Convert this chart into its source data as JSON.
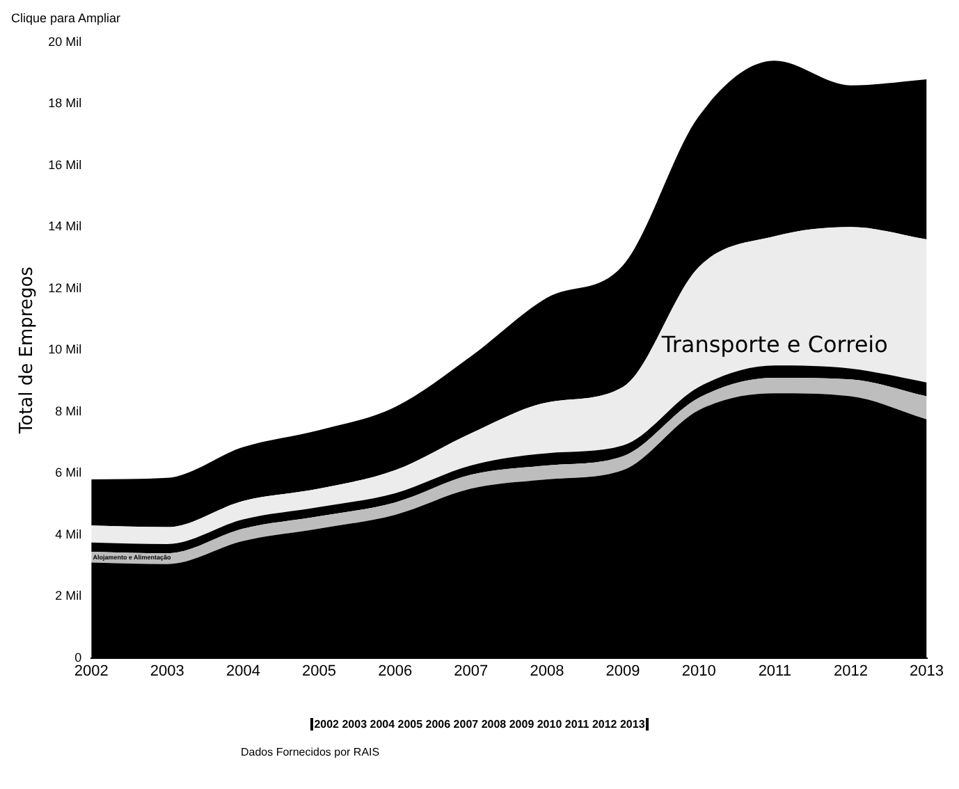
{
  "chart_data": {
    "type": "area",
    "stacked": true,
    "ylabel": "Total de Empregos",
    "annotations": [
      "Clique para Ampliar",
      "2002 2003 2004 2005 2006 2007 2008 2009 2010 2011 2012 2013",
      "Dados Fornecidos por RAIS"
    ],
    "x": [
      2002,
      2003,
      2004,
      2005,
      2006,
      2007,
      2008,
      2009,
      2010,
      2011,
      2012,
      2013
    ],
    "xlim": [
      2002,
      2013
    ],
    "xticks": [
      2002,
      2003,
      2004,
      2005,
      2006,
      2007,
      2008,
      2009,
      2010,
      2011,
      2012,
      2013
    ],
    "ylim": [
      0,
      20
    ],
    "yticks": [
      0,
      {
        "value": 2,
        "label": "2 Mil"
      },
      {
        "value": 4,
        "label": "4 Mil"
      },
      {
        "value": 6,
        "label": "6 Mil"
      },
      {
        "value": 8,
        "label": "8 Mil"
      },
      {
        "value": 10,
        "label": "10 Mil"
      },
      {
        "value": 12,
        "label": "12 Mil"
      },
      {
        "value": 14,
        "label": "14 Mil"
      },
      {
        "value": 16,
        "label": "16 Mil"
      },
      {
        "value": 18,
        "label": "18 Mil"
      },
      {
        "value": 20,
        "label": "20 Mil"
      }
    ],
    "grid": false,
    "legend": false,
    "series": [
      {
        "color": "#000000",
        "values": [
          3.1,
          3.05,
          3.8,
          4.2,
          4.65,
          5.5,
          5.8,
          6.1,
          8.05,
          8.6,
          8.5,
          7.75
        ]
      },
      {
        "name": "Alojamento e Alimentação",
        "color": "#bdbdbd",
        "values": [
          0.35,
          0.35,
          0.4,
          0.4,
          0.4,
          0.45,
          0.45,
          0.45,
          0.4,
          0.5,
          0.55,
          0.75
        ]
      },
      {
        "color": "#000000",
        "values": [
          0.3,
          0.3,
          0.3,
          0.3,
          0.3,
          0.3,
          0.4,
          0.35,
          0.35,
          0.4,
          0.35,
          0.45
        ]
      },
      {
        "name": "Transporte e Correio",
        "color": "#ececec",
        "values": [
          0.55,
          0.55,
          0.6,
          0.6,
          0.75,
          1.05,
          1.65,
          1.9,
          3.9,
          4.2,
          4.6,
          4.65
        ]
      },
      {
        "color": "#000000",
        "values": [
          1.5,
          1.6,
          1.75,
          1.9,
          2.05,
          2.5,
          3.4,
          3.95,
          4.9,
          5.7,
          4.6,
          5.2
        ]
      }
    ]
  }
}
